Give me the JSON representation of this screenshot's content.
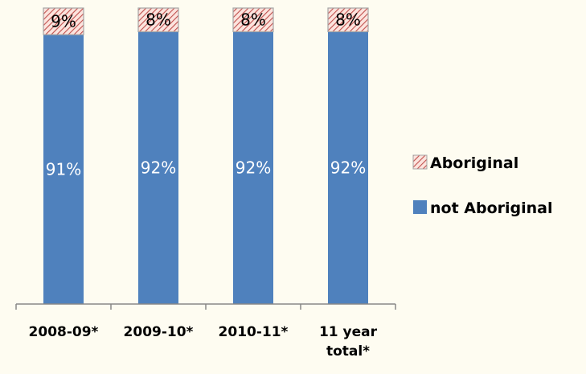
{
  "chart_data": {
    "type": "bar",
    "stacked": true,
    "percent_stacked": true,
    "categories": [
      "2008-09*",
      "2009-10*",
      "2010-11*",
      "11 year total*"
    ],
    "series": [
      {
        "name": "not Aboriginal",
        "values": [
          91,
          92,
          92,
          92
        ],
        "labels": [
          "91%",
          "92%",
          "92%",
          "92%"
        ],
        "color": "#4f81bd",
        "label_color": "#ffffff"
      },
      {
        "name": "Aboriginal",
        "values": [
          9,
          8,
          8,
          8
        ],
        "labels": [
          "9%",
          "8%",
          "8%",
          "8%"
        ],
        "color": "#fce4de",
        "hatch_color": "#c0504d",
        "pattern": "diagonal-hatch",
        "label_color": "#000000"
      }
    ],
    "legend": {
      "position": "right",
      "entries": [
        "Aboriginal",
        "not Aboriginal"
      ]
    },
    "ylim": [
      0,
      100
    ],
    "grid": false,
    "title": "",
    "xlabel": "",
    "ylabel": ""
  },
  "colors": {
    "background": "#fefcf1",
    "axis": "#888888"
  }
}
